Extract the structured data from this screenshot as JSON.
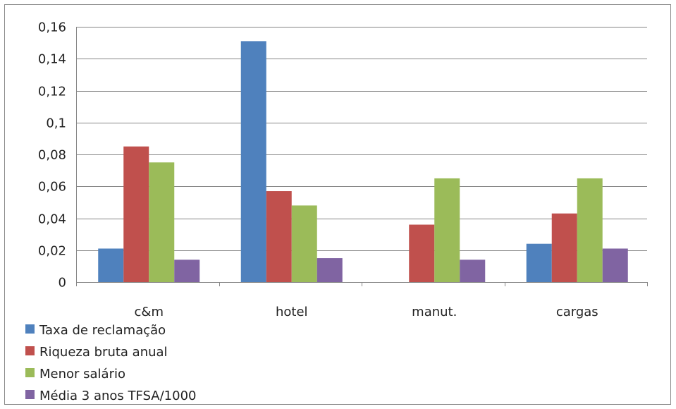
{
  "chart_data": {
    "type": "bar",
    "categories": [
      "c&m",
      "hotel",
      "manut.",
      "cargas"
    ],
    "series": [
      {
        "name": "Taxa de reclamação",
        "color": "#4f81bd",
        "values": [
          0.021,
          0.151,
          0,
          0.024
        ]
      },
      {
        "name": "Riqueza bruta anual",
        "color": "#c0504d",
        "values": [
          0.085,
          0.057,
          0.036,
          0.043
        ]
      },
      {
        "name": "Menor salário",
        "color": "#9bbb59",
        "values": [
          0.075,
          0.048,
          0.065,
          0.065
        ]
      },
      {
        "name": "Média 3 anos TFSA/1000",
        "color": "#8064a2",
        "values": [
          0.014,
          0.015,
          0.014,
          0.021
        ]
      }
    ],
    "ylim": [
      0,
      0.16
    ],
    "yticks": [
      0,
      0.02,
      0.04,
      0.06,
      0.08,
      0.1,
      0.12,
      0.14,
      0.16
    ],
    "ytick_labels": [
      "0",
      "0,02",
      "0,04",
      "0,06",
      "0,08",
      "0,1",
      "0,12",
      "0,14",
      "0,16"
    ],
    "title": "",
    "xlabel": "",
    "ylabel": "",
    "grid": true,
    "legend_position": "bottom-left"
  }
}
